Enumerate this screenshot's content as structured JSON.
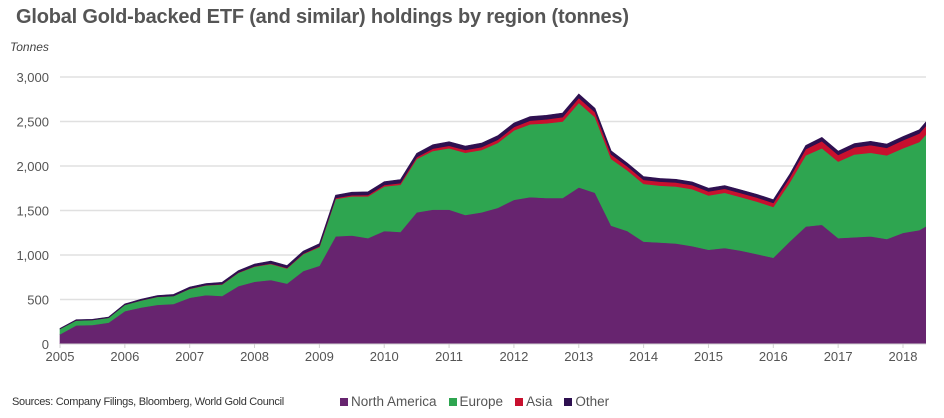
{
  "header": {
    "title": "Global Gold-backed ETF (and similar) holdings by region (tonnes)",
    "unit_label": "Tonnes"
  },
  "footer": {
    "sources": "Sources: Company Filings, Bloomberg, World Gold Council"
  },
  "colors": {
    "north_america": "#67246f",
    "europe": "#2ea550",
    "asia": "#c8102e",
    "other": "#2e1050",
    "grid": "#e0e0e0",
    "axis_text": "#555555"
  },
  "chart_data": {
    "type": "area",
    "stacked": true,
    "title": "Global Gold-backed ETF (and similar) holdings by region (tonnes)",
    "xlabel": "",
    "ylabel": "Tonnes",
    "ylim": [
      0,
      3000
    ],
    "xlim": [
      2005,
      2018.35
    ],
    "grid": true,
    "legend_position": "bottom",
    "yticks": [
      0,
      500,
      1000,
      1500,
      2000,
      2500,
      3000
    ],
    "ytick_labels": [
      "0",
      "500",
      "1,000",
      "1,500",
      "2,000",
      "2,500",
      "3,000"
    ],
    "xticks": [
      2005,
      2006,
      2007,
      2008,
      2009,
      2010,
      2011,
      2012,
      2013,
      2014,
      2015,
      2016,
      2017,
      2018
    ],
    "xtick_labels": [
      "2005",
      "2006",
      "2007",
      "2008",
      "2009",
      "2010",
      "2011",
      "2012",
      "2013",
      "2014",
      "2015",
      "2016",
      "2017",
      "2018"
    ],
    "x": [
      2005.0,
      2005.25,
      2005.5,
      2005.75,
      2006.0,
      2006.25,
      2006.5,
      2006.75,
      2007.0,
      2007.25,
      2007.5,
      2007.75,
      2008.0,
      2008.25,
      2008.5,
      2008.75,
      2009.0,
      2009.25,
      2009.5,
      2009.75,
      2010.0,
      2010.25,
      2010.5,
      2010.75,
      2011.0,
      2011.25,
      2011.5,
      2011.75,
      2012.0,
      2012.25,
      2012.5,
      2012.75,
      2013.0,
      2013.25,
      2013.5,
      2013.75,
      2014.0,
      2014.25,
      2014.5,
      2014.75,
      2015.0,
      2015.25,
      2015.5,
      2015.75,
      2016.0,
      2016.25,
      2016.5,
      2016.75,
      2017.0,
      2017.25,
      2017.5,
      2017.75,
      2018.0,
      2018.25,
      2018.35
    ],
    "series": [
      {
        "name": "North America",
        "values": [
          110,
          210,
          215,
          240,
          370,
          410,
          440,
          450,
          520,
          550,
          540,
          650,
          700,
          720,
          680,
          820,
          880,
          1210,
          1220,
          1190,
          1270,
          1260,
          1480,
          1510,
          1510,
          1450,
          1480,
          1530,
          1620,
          1650,
          1640,
          1640,
          1760,
          1700,
          1330,
          1270,
          1150,
          1140,
          1130,
          1100,
          1060,
          1080,
          1050,
          1010,
          970,
          1150,
          1320,
          1340,
          1190,
          1200,
          1210,
          1180,
          1250,
          1280,
          1320
        ]
      },
      {
        "name": "Europe",
        "values": [
          60,
          55,
          55,
          55,
          70,
          80,
          90,
          90,
          100,
          110,
          130,
          150,
          170,
          180,
          170,
          190,
          210,
          420,
          440,
          470,
          500,
          530,
          600,
          660,
          690,
          700,
          700,
          730,
          780,
          820,
          840,
          860,
          950,
          850,
          750,
          680,
          650,
          640,
          640,
          640,
          610,
          620,
          600,
          590,
          570,
          660,
          800,
          860,
          860,
          930,
          940,
          940,
          950,
          990,
          1030
        ]
      },
      {
        "name": "Asia",
        "values": [
          0,
          0,
          0,
          0,
          0,
          1,
          1,
          1,
          2,
          2,
          3,
          3,
          4,
          5,
          5,
          6,
          8,
          10,
          12,
          14,
          16,
          18,
          20,
          25,
          28,
          30,
          32,
          35,
          38,
          40,
          45,
          50,
          55,
          55,
          50,
          45,
          45,
          45,
          45,
          45,
          45,
          45,
          45,
          45,
          45,
          55,
          70,
          80,
          75,
          80,
          85,
          85,
          90,
          95,
          100
        ]
      },
      {
        "name": "Other",
        "values": [
          5,
          8,
          8,
          8,
          10,
          12,
          14,
          16,
          18,
          18,
          20,
          22,
          25,
          26,
          26,
          28,
          30,
          32,
          34,
          36,
          38,
          40,
          42,
          44,
          45,
          45,
          45,
          45,
          45,
          45,
          45,
          45,
          45,
          43,
          40,
          38,
          36,
          36,
          36,
          36,
          36,
          36,
          36,
          36,
          36,
          38,
          40,
          42,
          42,
          42,
          42,
          42,
          42,
          42,
          42
        ]
      }
    ]
  },
  "legend": {
    "items": [
      {
        "label": "North America",
        "color_key": "north_america"
      },
      {
        "label": "Europe",
        "color_key": "europe"
      },
      {
        "label": "Asia",
        "color_key": "asia"
      },
      {
        "label": "Other",
        "color_key": "other"
      }
    ]
  }
}
